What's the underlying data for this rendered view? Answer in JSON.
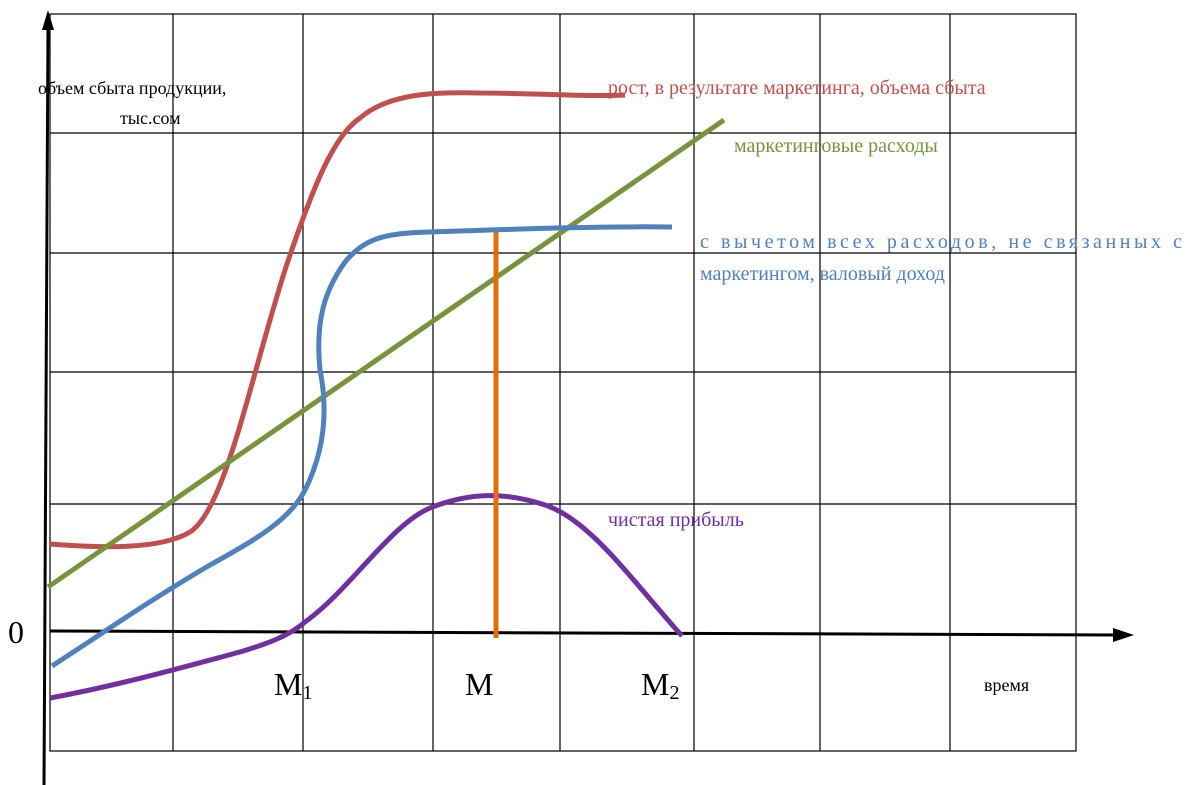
{
  "chart_data": {
    "type": "line",
    "ylabel_lines": [
      "объем сбыта продукции,",
      "тыс.сом"
    ],
    "xlabel": "время",
    "origin_label": "0",
    "x_markers": [
      {
        "base": "M",
        "sub": "1"
      },
      {
        "base": "M",
        "sub": ""
      },
      {
        "base": "M",
        "sub": "2"
      }
    ],
    "series": [
      {
        "name": "рост, в результате маркетинга, объема сбыта",
        "color": "#c0504d"
      },
      {
        "name": "маркетинговые расходы",
        "color": "#77933c"
      },
      {
        "name_lines": [
          "с вычетом всех расходов, не связанных с",
          "маркетингом, валовый доход"
        ],
        "color": "#4f81bd"
      },
      {
        "name": "чистая прибыль",
        "color": "#7030a0"
      }
    ],
    "marker_line_color": "#e46c0a",
    "grid": true
  }
}
